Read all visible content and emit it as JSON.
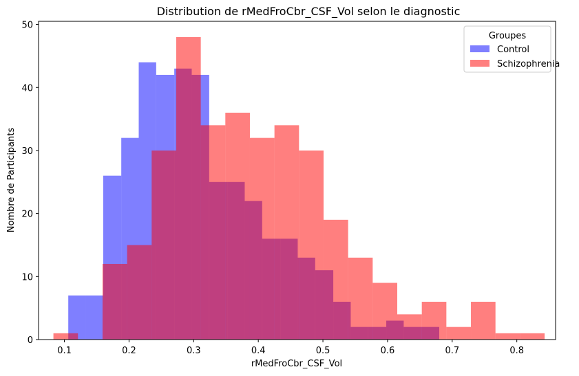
{
  "chart_data": {
    "type": "histogram",
    "title": "Distribution de rMedFroCbr_CSF_Vol selon le diagnostic",
    "xlabel": "rMedFroCbr_CSF_Vol",
    "ylabel": "Nombre de Participants",
    "xlim": [
      0.06,
      0.86
    ],
    "ylim": [
      0,
      50.5
    ],
    "xticks": [
      "0.1",
      "0.2",
      "0.3",
      "0.4",
      "0.5",
      "0.6",
      "0.7",
      "0.8"
    ],
    "yticks": [
      "0",
      "10",
      "20",
      "30",
      "40",
      "50"
    ],
    "legend": {
      "title": "Groupes",
      "position": "top-right"
    },
    "grid": false,
    "series": [
      {
        "name": "Control",
        "color": "#0000ff",
        "opacity": 0.5,
        "bins": [
          {
            "x0": 0.106,
            "x1": 0.133,
            "count": 7
          },
          {
            "x0": 0.133,
            "x1": 0.16,
            "count": 7
          },
          {
            "x0": 0.16,
            "x1": 0.188,
            "count": 26
          },
          {
            "x0": 0.188,
            "x1": 0.215,
            "count": 32
          },
          {
            "x0": 0.215,
            "x1": 0.242,
            "count": 44
          },
          {
            "x0": 0.242,
            "x1": 0.27,
            "count": 42
          },
          {
            "x0": 0.27,
            "x1": 0.297,
            "count": 43
          },
          {
            "x0": 0.297,
            "x1": 0.324,
            "count": 42
          },
          {
            "x0": 0.324,
            "x1": 0.352,
            "count": 25
          },
          {
            "x0": 0.352,
            "x1": 0.379,
            "count": 25
          },
          {
            "x0": 0.379,
            "x1": 0.406,
            "count": 22
          },
          {
            "x0": 0.406,
            "x1": 0.434,
            "count": 16
          },
          {
            "x0": 0.434,
            "x1": 0.461,
            "count": 16
          },
          {
            "x0": 0.461,
            "x1": 0.488,
            "count": 13
          },
          {
            "x0": 0.488,
            "x1": 0.516,
            "count": 11
          },
          {
            "x0": 0.516,
            "x1": 0.543,
            "count": 6
          },
          {
            "x0": 0.543,
            "x1": 0.57,
            "count": 2
          },
          {
            "x0": 0.57,
            "x1": 0.598,
            "count": 2
          },
          {
            "x0": 0.598,
            "x1": 0.625,
            "count": 3
          },
          {
            "x0": 0.625,
            "x1": 0.652,
            "count": 2
          },
          {
            "x0": 0.652,
            "x1": 0.68,
            "count": 2
          },
          {
            "x0": 0.68,
            "x1": 0.707,
            "count": 0
          }
        ]
      },
      {
        "name": "Schizophrenia",
        "color": "#ff0000",
        "opacity": 0.5,
        "bins": [
          {
            "x0": 0.083,
            "x1": 0.121,
            "count": 1
          },
          {
            "x0": 0.121,
            "x1": 0.159,
            "count": 0
          },
          {
            "x0": 0.159,
            "x1": 0.197,
            "count": 12
          },
          {
            "x0": 0.197,
            "x1": 0.235,
            "count": 15
          },
          {
            "x0": 0.235,
            "x1": 0.273,
            "count": 30
          },
          {
            "x0": 0.273,
            "x1": 0.311,
            "count": 48
          },
          {
            "x0": 0.311,
            "x1": 0.349,
            "count": 34
          },
          {
            "x0": 0.349,
            "x1": 0.387,
            "count": 36
          },
          {
            "x0": 0.387,
            "x1": 0.425,
            "count": 32
          },
          {
            "x0": 0.425,
            "x1": 0.463,
            "count": 34
          },
          {
            "x0": 0.463,
            "x1": 0.501,
            "count": 30
          },
          {
            "x0": 0.501,
            "x1": 0.539,
            "count": 19
          },
          {
            "x0": 0.539,
            "x1": 0.577,
            "count": 13
          },
          {
            "x0": 0.577,
            "x1": 0.615,
            "count": 9
          },
          {
            "x0": 0.615,
            "x1": 0.653,
            "count": 4
          },
          {
            "x0": 0.653,
            "x1": 0.691,
            "count": 6
          },
          {
            "x0": 0.691,
            "x1": 0.729,
            "count": 2
          },
          {
            "x0": 0.729,
            "x1": 0.767,
            "count": 6
          },
          {
            "x0": 0.767,
            "x1": 0.805,
            "count": 1
          },
          {
            "x0": 0.805,
            "x1": 0.843,
            "count": 1
          }
        ]
      }
    ]
  }
}
